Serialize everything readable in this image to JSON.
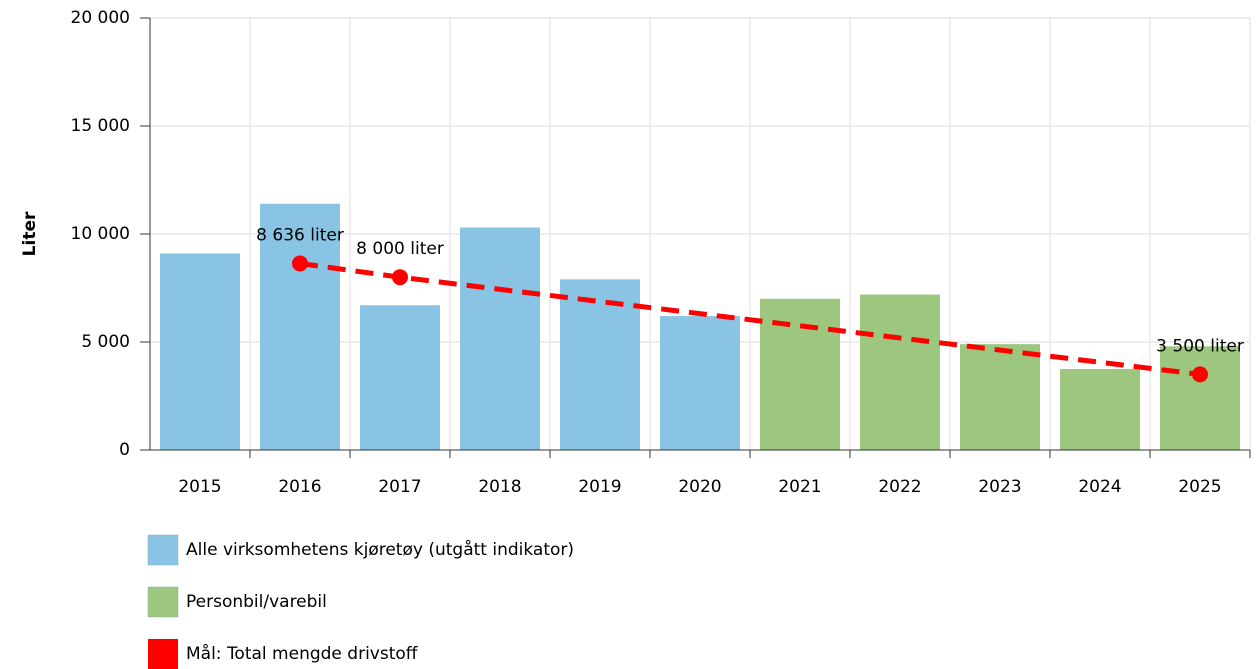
{
  "chart_data": {
    "type": "bar",
    "ylabel": "Liter",
    "categories": [
      2015,
      2016,
      2017,
      2018,
      2019,
      2020,
      2021,
      2022,
      2023,
      2024,
      2025
    ],
    "series": [
      {
        "name": "Alle virksomhetens kjøretøy (utgått indikator)",
        "color": "#89c4e4",
        "values": [
          9100,
          11400,
          6700,
          10300,
          7900,
          6200,
          null,
          null,
          null,
          null,
          null
        ]
      },
      {
        "name": "Personbil/varebil",
        "color": "#9dc67f",
        "values": [
          null,
          null,
          null,
          null,
          null,
          null,
          7000,
          7200,
          4900,
          3750,
          4800
        ]
      },
      {
        "name": "Mål: Total mengde drivstoff",
        "color": "#ff0000",
        "type": "line",
        "x": [
          2016,
          2017,
          2025
        ],
        "values": [
          8636,
          8000,
          3500
        ],
        "value_labels": [
          "8 636 liter",
          "8 000 liter",
          "3 500 liter"
        ]
      }
    ],
    "ylim": [
      0,
      20000
    ],
    "yticks": [
      0,
      {
        "value": 5000,
        "label": "5 000"
      },
      {
        "value": 10000,
        "label": "10 000"
      },
      {
        "value": 15000,
        "label": "15 000"
      },
      {
        "value": 20000,
        "label": "20 000"
      }
    ],
    "grid": true
  }
}
